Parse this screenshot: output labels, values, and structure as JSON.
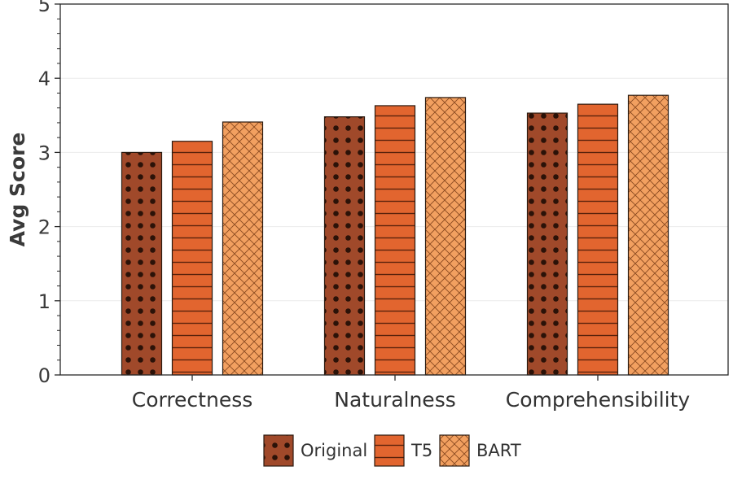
{
  "chart_data": {
    "type": "bar",
    "title": "",
    "xlabel": "",
    "ylabel": "Avg Score",
    "ylim": [
      0,
      5
    ],
    "yticks": [
      0,
      1,
      2,
      3,
      4,
      5
    ],
    "grid": true,
    "legend_position": "bottom-center",
    "categories": [
      "Correctness",
      "Naturalness",
      "Comprehensibility"
    ],
    "series": [
      {
        "name": "Original",
        "values": [
          3.0,
          3.48,
          3.53
        ],
        "color": "#a0492a",
        "pattern": "dots"
      },
      {
        "name": "T5",
        "values": [
          3.15,
          3.63,
          3.65
        ],
        "color": "#e2652f",
        "pattern": "horizontal-lines"
      },
      {
        "name": "BART",
        "values": [
          3.41,
          3.74,
          3.77
        ],
        "color": "#f2a060",
        "pattern": "crosshatch"
      }
    ]
  }
}
